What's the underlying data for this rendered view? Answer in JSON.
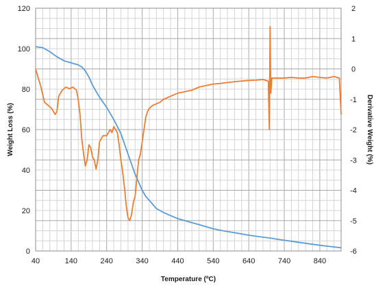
{
  "chart_data": {
    "type": "line",
    "xlabel": "Temperature (ºC)",
    "ylabel_left": "Weight Loss (%)",
    "ylabel_right": "Derivative Weight (%)",
    "xlim": [
      40,
      900
    ],
    "ylim_left": [
      0,
      120
    ],
    "ylim_right": [
      -6,
      2
    ],
    "x_ticks": [
      "40",
      "140",
      "240",
      "340",
      "440",
      "540",
      "640",
      "740",
      "840"
    ],
    "y_left_ticks": [
      "0",
      "20",
      "40",
      "60",
      "80",
      "100",
      "120"
    ],
    "y_right_ticks": [
      "-6",
      "-5",
      "-4",
      "-3",
      "-2",
      "-1",
      "0",
      "1",
      "2"
    ],
    "grid": true,
    "series": [
      {
        "axis": "left",
        "color": "#5b9bd5",
        "x": [
          40,
          60,
          80,
          100,
          120,
          140,
          160,
          170,
          180,
          190,
          200,
          220,
          240,
          260,
          280,
          290,
          300,
          310,
          320,
          330,
          340,
          350,
          360,
          370,
          380,
          400,
          420,
          440,
          460,
          480,
          500,
          520,
          540,
          560,
          600,
          640,
          680,
          700,
          720,
          760,
          800,
          840,
          880,
          900
        ],
        "y": [
          101,
          100.5,
          98.5,
          96,
          94,
          93,
          92,
          91,
          89,
          86,
          82,
          76,
          71,
          65,
          58,
          53,
          48,
          43,
          38,
          34,
          30,
          27,
          25,
          23,
          21,
          19,
          17.5,
          16,
          15,
          14,
          13,
          12,
          11,
          10.2,
          9,
          7.8,
          6.8,
          6.4,
          5.8,
          4.8,
          3.8,
          2.8,
          2,
          1.6
        ]
      },
      {
        "axis": "right",
        "color": "#ed7d31",
        "x": [
          40,
          45,
          55,
          65,
          75,
          85,
          95,
          100,
          105,
          115,
          125,
          135,
          145,
          155,
          160,
          165,
          170,
          175,
          180,
          185,
          190,
          195,
          200,
          205,
          210,
          215,
          220,
          230,
          240,
          250,
          255,
          260,
          270,
          275,
          280,
          285,
          290,
          295,
          300,
          305,
          310,
          315,
          320,
          325,
          330,
          335,
          340,
          345,
          350,
          355,
          360,
          370,
          380,
          390,
          400,
          420,
          440,
          460,
          480,
          500,
          520,
          540,
          560,
          580,
          600,
          620,
          640,
          660,
          680,
          695,
          698,
          700,
          702,
          705,
          720,
          740,
          760,
          780,
          800,
          820,
          840,
          860,
          880,
          895,
          900
        ],
        "y": [
          0,
          -0.2,
          -0.6,
          -1.1,
          -1.2,
          -1.3,
          -1.5,
          -1.4,
          -0.9,
          -0.7,
          -0.6,
          -0.65,
          -0.6,
          -0.7,
          -1.0,
          -1.5,
          -2.3,
          -2.8,
          -3.2,
          -3.0,
          -2.5,
          -2.6,
          -2.9,
          -3.0,
          -3.3,
          -3.0,
          -2.4,
          -2.2,
          -2.2,
          -2.0,
          -2.1,
          -1.9,
          -2.1,
          -2.5,
          -3.0,
          -3.4,
          -3.9,
          -4.5,
          -4.9,
          -5.0,
          -4.8,
          -4.4,
          -4.2,
          -3.6,
          -3.0,
          -2.8,
          -2.4,
          -2.0,
          -1.6,
          -1.4,
          -1.3,
          -1.2,
          -1.15,
          -1.1,
          -1.0,
          -0.9,
          -0.8,
          -0.75,
          -0.7,
          -0.6,
          -0.55,
          -0.5,
          -0.48,
          -0.45,
          -0.42,
          -0.4,
          -0.38,
          -0.37,
          -0.35,
          -0.4,
          -2.0,
          1.4,
          -0.8,
          -0.3,
          -0.3,
          -0.3,
          -0.28,
          -0.3,
          -0.3,
          -0.25,
          -0.28,
          -0.3,
          -0.25,
          -0.3,
          -1.5
        ]
      }
    ]
  }
}
